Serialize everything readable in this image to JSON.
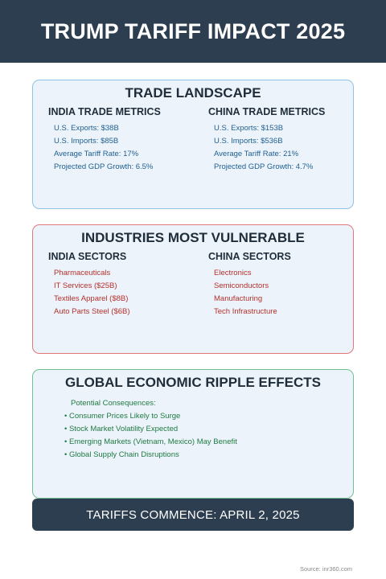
{
  "header": {
    "title": "TRUMP TARIFF IMPACT 2025"
  },
  "trade": {
    "title": "TRADE LANDSCAPE",
    "india": {
      "title": "INDIA TRADE METRICS",
      "items": [
        "U.S. Exports: $38B",
        "U.S. Imports: $85B",
        "Average Tariff Rate: 17%",
        "Projected GDP Growth: 6.5%"
      ]
    },
    "china": {
      "title": "CHINA TRADE METRICS",
      "items": [
        "U.S. Exports: $153B",
        "U.S. Imports: $536B",
        "Average Tariff Rate: 21%",
        "Projected GDP Growth: 4.7%"
      ]
    }
  },
  "industries": {
    "title": "INDUSTRIES MOST VULNERABLE",
    "india": {
      "title": "INDIA SECTORS",
      "items": [
        "Pharmaceuticals",
        "IT Services ($25B)",
        "Textiles Apparel ($8B)",
        "Auto Parts Steel ($6B)"
      ]
    },
    "china": {
      "title": "CHINA SECTORS",
      "items": [
        "Electronics",
        "Semiconductors",
        "Manufacturing",
        "Tech Infrastructure"
      ]
    }
  },
  "ripple": {
    "title": "GLOBAL ECONOMIC RIPPLE EFFECTS",
    "lead": "Potential Consequences:",
    "items": [
      "• Consumer Prices Likely to Surge",
      "• Stock Market Volatility Expected",
      "• Emerging Markets (Vietnam, Mexico) May Benefit",
      "• Global Supply Chain Disruptions"
    ]
  },
  "banner": {
    "text": "TARIFFS COMMENCE: APRIL 2, 2025"
  },
  "footer": {
    "source": "Source: inr360.com"
  }
}
